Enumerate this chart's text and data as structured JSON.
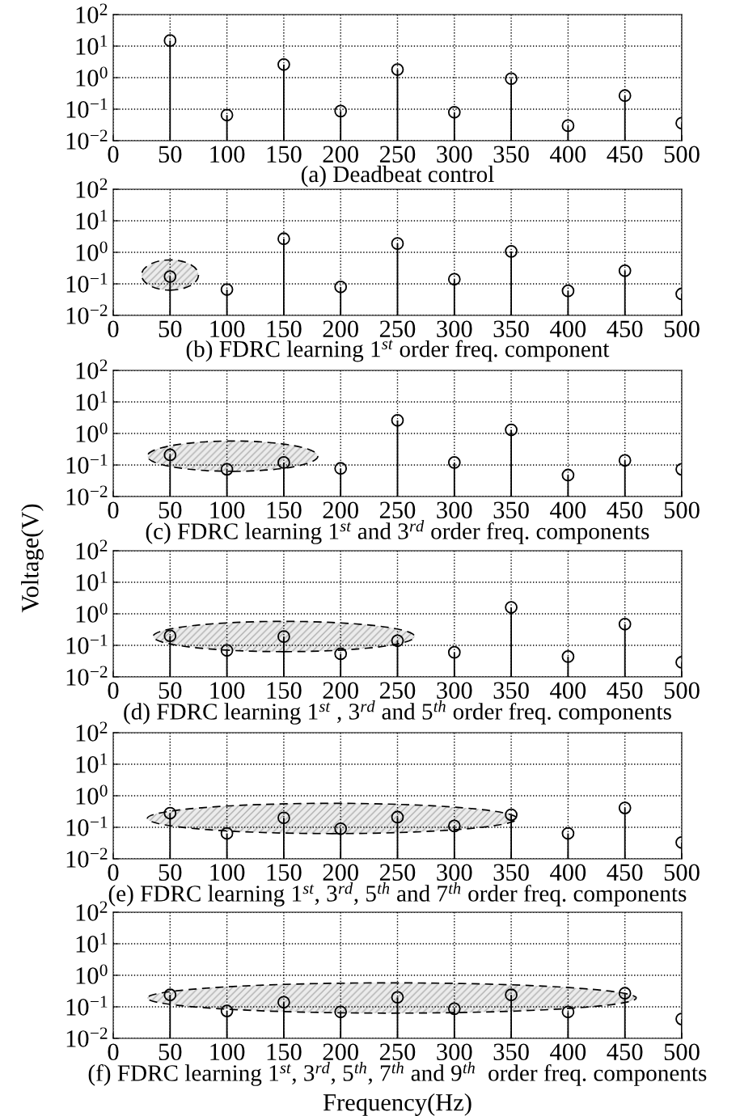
{
  "chart_data": [
    {
      "type": "lollipop",
      "title": "(a) Deadbeat control",
      "x": [
        50,
        100,
        150,
        200,
        250,
        300,
        350,
        400,
        450,
        500
      ],
      "series": [
        {
          "color": "#000000",
          "values": [
            15,
            0.065,
            2.6,
            0.087,
            1.8,
            0.08,
            0.93,
            0.03,
            0.27,
            0.036
          ]
        }
      ],
      "xlim": [
        0,
        500
      ],
      "xticks": [
        0,
        50,
        100,
        150,
        200,
        250,
        300,
        350,
        400,
        450,
        500
      ],
      "ylim": [
        0.01,
        100
      ],
      "yticks": [
        {
          "value": 0.01,
          "label": "10$^{−2}$"
        },
        {
          "value": 0.1,
          "label": "10$^{−1}$"
        },
        {
          "value": 1,
          "label": "10$^{0}$"
        },
        {
          "value": 10,
          "label": "10$^{1}$"
        },
        {
          "value": 100,
          "label": "10$^{2}$"
        }
      ],
      "log": "y",
      "grid": true,
      "marker": "circle"
    },
    {
      "type": "lollipop",
      "title": "(b) FDRC learning 1$^{st}$ order freq. component",
      "x": [
        50,
        100,
        150,
        200,
        250,
        300,
        350,
        400,
        450,
        500
      ],
      "series": [
        {
          "color": "#000000",
          "values": [
            0.17,
            0.066,
            2.7,
            0.08,
            1.9,
            0.14,
            1.07,
            0.06,
            0.26,
            0.048
          ]
        }
      ],
      "xlim": [
        0,
        500
      ],
      "xticks": [
        0,
        50,
        100,
        150,
        200,
        250,
        300,
        350,
        400,
        450,
        500
      ],
      "ylim": [
        0.01,
        100
      ],
      "yticks": [
        {
          "value": 0.01,
          "label": "10$^{−2}$"
        },
        {
          "value": 0.1,
          "label": "10$^{−1}$"
        },
        {
          "value": 1,
          "label": "10$^{0}$"
        },
        {
          "value": 10,
          "label": "10$^{1}$"
        },
        {
          "value": 100,
          "label": "10$^{2}$"
        }
      ],
      "log": "y",
      "grid": true,
      "marker": "circle"
    },
    {
      "type": "lollipop",
      "title": "(c) FDRC learning 1$^{st}$ and 3$^{rd}$ order freq. components",
      "x": [
        50,
        100,
        150,
        200,
        250,
        300,
        350,
        400,
        450,
        500
      ],
      "series": [
        {
          "color": "#000000",
          "values": [
            0.21,
            0.073,
            0.12,
            0.078,
            2.6,
            0.12,
            1.3,
            0.048,
            0.14,
            0.073
          ]
        }
      ],
      "xlim": [
        0,
        500
      ],
      "xticks": [
        0,
        50,
        100,
        150,
        200,
        250,
        300,
        350,
        400,
        450,
        500
      ],
      "ylim": [
        0.01,
        100
      ],
      "yticks": [
        {
          "value": 0.01,
          "label": "10$^{−2}$"
        },
        {
          "value": 0.1,
          "label": "10$^{−1}$"
        },
        {
          "value": 1,
          "label": "10$^{0}$"
        },
        {
          "value": 10,
          "label": "10$^{1}$"
        },
        {
          "value": 100,
          "label": "10$^{2}$"
        }
      ],
      "log": "y",
      "grid": true,
      "marker": "circle"
    },
    {
      "type": "lollipop",
      "title": "(d) FDRC learning 1$^{st}$ , 3$^{rd}$ and 5$^{th}$ order freq. components",
      "ylabel": "Voltage(V)",
      "x": [
        50,
        100,
        150,
        200,
        250,
        300,
        350,
        400,
        450,
        500
      ],
      "series": [
        {
          "color": "#000000",
          "values": [
            0.2,
            0.069,
            0.19,
            0.054,
            0.14,
            0.06,
            1.6,
            0.044,
            0.47,
            0.029
          ]
        }
      ],
      "xlim": [
        0,
        500
      ],
      "xticks": [
        0,
        50,
        100,
        150,
        200,
        250,
        300,
        350,
        400,
        450,
        500
      ],
      "ylim": [
        0.01,
        100
      ],
      "yticks": [
        {
          "value": 0.01,
          "label": "10$^{−2}$"
        },
        {
          "value": 0.1,
          "label": "10$^{−1}$"
        },
        {
          "value": 1,
          "label": "10$^{0}$"
        },
        {
          "value": 10,
          "label": "10$^{1}$"
        },
        {
          "value": 100,
          "label": "10$^{2}$"
        }
      ],
      "log": "y",
      "grid": true,
      "marker": "circle"
    },
    {
      "type": "lollipop",
      "title": "(e) FDRC learning 1$^{st}$, 3$^{rd}$, 5$^{th}$ and 7$^{th}$ order freq. components",
      "x": [
        50,
        100,
        150,
        200,
        250,
        300,
        350,
        400,
        450,
        500
      ],
      "series": [
        {
          "color": "#000000",
          "values": [
            0.28,
            0.064,
            0.2,
            0.09,
            0.21,
            0.11,
            0.25,
            0.064,
            0.41,
            0.033
          ]
        }
      ],
      "xlim": [
        0,
        500
      ],
      "xticks": [
        0,
        50,
        100,
        150,
        200,
        250,
        300,
        350,
        400,
        450,
        500
      ],
      "ylim": [
        0.01,
        100
      ],
      "yticks": [
        {
          "value": 0.01,
          "label": "10$^{−2}$"
        },
        {
          "value": 0.1,
          "label": "10$^{−1}$"
        },
        {
          "value": 1,
          "label": "10$^{0}$"
        },
        {
          "value": 10,
          "label": "10$^{1}$"
        },
        {
          "value": 100,
          "label": "10$^{2}$"
        }
      ],
      "log": "y",
      "grid": true,
      "marker": "circle"
    },
    {
      "type": "lollipop",
      "title": "(f) FDRC learning 1$^{st}$, 3$^{rd}$, 5$^{th}$, 7$^{th}$ and 9$^{th}$  order freq. components",
      "xlabel": "Frequency(Hz)",
      "x": [
        50,
        100,
        150,
        200,
        250,
        300,
        350,
        400,
        450,
        500
      ],
      "series": [
        {
          "color": "#000000",
          "values": [
            0.24,
            0.074,
            0.14,
            0.069,
            0.2,
            0.087,
            0.24,
            0.069,
            0.27,
            0.041
          ]
        }
      ],
      "xlim": [
        0,
        500
      ],
      "xticks": [
        0,
        50,
        100,
        150,
        200,
        250,
        300,
        350,
        400,
        450,
        500
      ],
      "ylim": [
        0.01,
        100
      ],
      "yticks": [
        {
          "value": 0.01,
          "label": "10$^{−2}$"
        },
        {
          "value": 0.1,
          "label": "10$^{−1}$"
        },
        {
          "value": 1,
          "label": "10$^{0}$"
        },
        {
          "value": 10,
          "label": "10$^{1}$"
        },
        {
          "value": 100,
          "label": "10$^{2}$"
        }
      ],
      "log": "y",
      "grid": true,
      "marker": "circle"
    }
  ]
}
